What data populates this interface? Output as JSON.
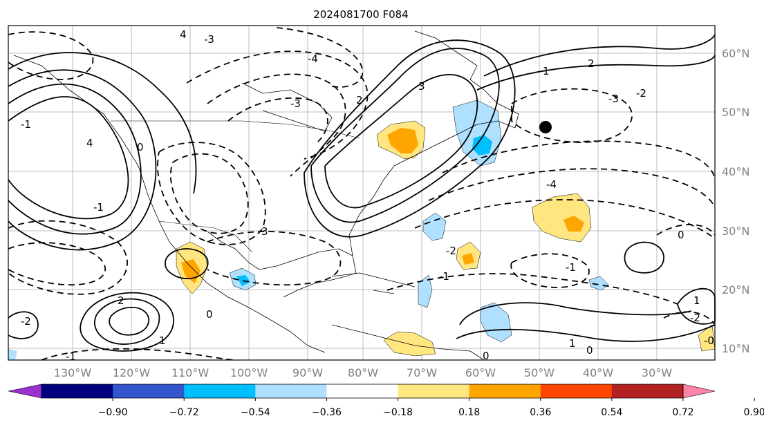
{
  "title": "2024081700 F084",
  "map": {
    "lon_ticks": [
      "130°W",
      "120°W",
      "110°W",
      "100°W",
      "90°W",
      "80°W",
      "70°W",
      "60°W",
      "50°W",
      "40°W",
      "30°W"
    ],
    "lat_ticks": [
      "10°N",
      "20°N",
      "30°N",
      "40°N",
      "50°N",
      "60°N"
    ],
    "contour_labels": [
      "4",
      "-3",
      "3",
      "-4",
      "2",
      "-2",
      "1",
      "-1",
      "0",
      "-3",
      "2",
      "-3",
      "-2",
      "-1",
      "3",
      "4",
      "-4",
      "-1",
      "0",
      "-2",
      "1",
      "0",
      "1",
      "0",
      "-1",
      "-0",
      "-2",
      "2",
      "1",
      "-1",
      "0"
    ],
    "marker": "filled-circle"
  },
  "colorbar": {
    "ticks": [
      "−0.90",
      "−0.72",
      "−0.54",
      "−0.36",
      "−0.18",
      "0.18",
      "0.36",
      "0.54",
      "0.72",
      "0.90"
    ],
    "colors": [
      "#9b30d0",
      "#000080",
      "#3355cc",
      "#00bfff",
      "#b0e0ff",
      "#ffffff",
      "#ffe680",
      "#ffa500",
      "#ff4500",
      "#b22222",
      "#ff85a8"
    ]
  }
}
